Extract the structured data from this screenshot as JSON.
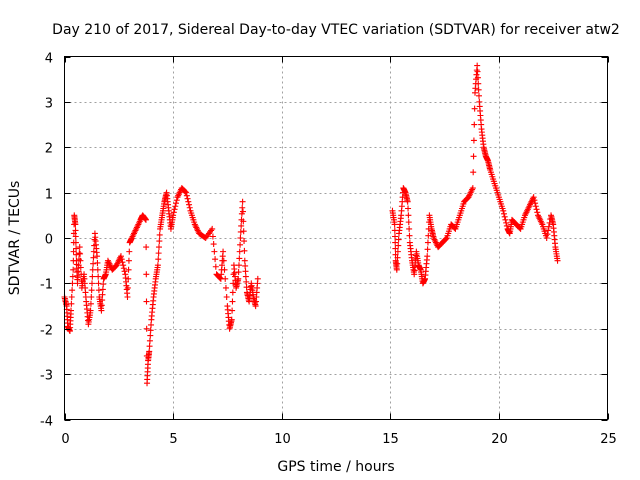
{
  "chart_data": {
    "type": "scatter",
    "title": "Day 210 of 2017, Sidereal Day-to-day VTEC variation (SDTVAR) for receiver atw2",
    "xlabel": "GPS time / hours",
    "ylabel": "SDTVAR / TECUs",
    "xlim": [
      0,
      25
    ],
    "ylim": [
      -4,
      4
    ],
    "xticks": [
      0,
      5,
      10,
      15,
      20,
      25
    ],
    "yticks": [
      -4,
      -3,
      -2,
      -1,
      0,
      1,
      2,
      3,
      4
    ],
    "xtick_labels": [
      "0",
      "5",
      "10",
      "15",
      "20",
      "25"
    ],
    "ytick_labels": [
      "-4",
      "-3",
      "-2",
      "-1",
      "0",
      "1",
      "2",
      "3",
      "4"
    ],
    "grid": true,
    "marker": "+",
    "color": "#ff0000",
    "series": [
      {
        "name": "SDTVAR",
        "segments": [
          [
            [
              0.0,
              -1.3
            ],
            [
              0.1,
              -1.5
            ],
            [
              0.15,
              -1.95
            ],
            [
              0.25,
              -2.05
            ],
            [
              0.3,
              -1.6
            ],
            [
              0.4,
              -0.7
            ],
            [
              0.45,
              0.5
            ],
            [
              0.5,
              0.3
            ],
            [
              0.55,
              -0.5
            ],
            [
              0.6,
              -1.0
            ],
            [
              0.7,
              -0.2
            ],
            [
              0.8,
              -1.1
            ],
            [
              0.9,
              -0.8
            ],
            [
              1.0,
              -1.4
            ],
            [
              1.1,
              -1.9
            ],
            [
              1.2,
              -1.6
            ],
            [
              1.3,
              -0.7
            ],
            [
              1.4,
              0.1
            ],
            [
              1.5,
              -0.4
            ],
            [
              1.6,
              -1.3
            ],
            [
              1.7,
              -1.6
            ],
            [
              1.8,
              -0.9
            ],
            [
              1.9,
              -0.8
            ],
            [
              2.0,
              -0.5
            ],
            [
              2.2,
              -0.7
            ],
            [
              2.4,
              -0.6
            ],
            [
              2.6,
              -0.4
            ],
            [
              2.8,
              -0.8
            ],
            [
              2.9,
              -1.3
            ],
            [
              3.0,
              -0.1
            ],
            [
              3.1,
              0.0
            ],
            [
              3.3,
              0.2
            ],
            [
              3.5,
              0.4
            ],
            [
              3.6,
              0.5
            ],
            [
              3.75,
              0.4
            ],
            [
              3.8,
              -3.2
            ],
            [
              3.85,
              -2.7
            ],
            [
              3.9,
              -2.5
            ],
            [
              4.0,
              -1.8
            ],
            [
              4.1,
              -1.3
            ],
            [
              4.2,
              -0.9
            ],
            [
              4.3,
              -0.6
            ],
            [
              4.4,
              0.2
            ],
            [
              4.5,
              0.5
            ],
            [
              4.6,
              0.8
            ],
            [
              4.7,
              1.0
            ],
            [
              4.8,
              0.6
            ],
            [
              4.9,
              0.2
            ],
            [
              5.0,
              0.5
            ],
            [
              5.2,
              0.9
            ],
            [
              5.4,
              1.1
            ],
            [
              5.6,
              1.0
            ],
            [
              5.8,
              0.6
            ],
            [
              6.0,
              0.3
            ],
            [
              6.2,
              0.1
            ],
            [
              6.5,
              0.0
            ],
            [
              6.8,
              0.2
            ],
            [
              7.0,
              -0.8
            ],
            [
              7.2,
              -0.9
            ],
            [
              7.3,
              -0.3
            ],
            [
              7.5,
              -1.5
            ],
            [
              7.6,
              -2.0
            ],
            [
              7.7,
              -1.8
            ],
            [
              7.8,
              -0.6
            ],
            [
              7.9,
              -1.1
            ],
            [
              8.0,
              -0.9
            ],
            [
              8.1,
              0.0
            ],
            [
              8.2,
              0.8
            ],
            [
              8.3,
              -0.5
            ],
            [
              8.4,
              -1.2
            ],
            [
              8.5,
              -1.4
            ],
            [
              8.6,
              -1.0
            ],
            [
              8.7,
              -1.3
            ],
            [
              8.8,
              -1.5
            ],
            [
              8.9,
              -0.9
            ]
          ],
          [
            [
              15.1,
              0.6
            ],
            [
              15.2,
              0.3
            ],
            [
              15.25,
              -0.5
            ],
            [
              15.3,
              -0.7
            ],
            [
              15.4,
              0.1
            ],
            [
              15.5,
              0.5
            ],
            [
              15.6,
              1.1
            ],
            [
              15.7,
              1.0
            ],
            [
              15.8,
              0.8
            ],
            [
              15.9,
              -0.1
            ],
            [
              16.0,
              -0.5
            ],
            [
              16.1,
              -0.8
            ],
            [
              16.2,
              -0.3
            ],
            [
              16.3,
              -0.6
            ],
            [
              16.4,
              -0.7
            ],
            [
              16.5,
              -1.0
            ],
            [
              16.6,
              -0.9
            ],
            [
              16.7,
              -0.4
            ],
            [
              16.8,
              0.5
            ],
            [
              16.9,
              0.2
            ],
            [
              17.0,
              0.0
            ],
            [
              17.2,
              -0.2
            ],
            [
              17.4,
              -0.1
            ],
            [
              17.6,
              0.0
            ],
            [
              17.8,
              0.3
            ],
            [
              18.0,
              0.2
            ],
            [
              18.2,
              0.5
            ],
            [
              18.4,
              0.8
            ],
            [
              18.6,
              0.9
            ],
            [
              18.8,
              1.1
            ],
            [
              18.9,
              3.2
            ],
            [
              19.0,
              3.8
            ],
            [
              19.1,
              3.0
            ],
            [
              19.2,
              2.4
            ],
            [
              19.3,
              2.0
            ],
            [
              19.4,
              1.8
            ],
            [
              19.5,
              1.7
            ],
            [
              19.6,
              1.5
            ],
            [
              19.8,
              1.2
            ],
            [
              20.0,
              0.9
            ],
            [
              20.2,
              0.6
            ],
            [
              20.4,
              0.2
            ],
            [
              20.5,
              0.1
            ],
            [
              20.6,
              0.4
            ],
            [
              20.8,
              0.3
            ],
            [
              21.0,
              0.2
            ],
            [
              21.2,
              0.5
            ],
            [
              21.4,
              0.7
            ],
            [
              21.6,
              0.9
            ],
            [
              21.8,
              0.5
            ],
            [
              22.0,
              0.3
            ],
            [
              22.2,
              0.0
            ],
            [
              22.4,
              0.5
            ],
            [
              22.5,
              0.3
            ],
            [
              22.6,
              -0.2
            ],
            [
              22.7,
              -0.5
            ]
          ]
        ]
      }
    ]
  }
}
